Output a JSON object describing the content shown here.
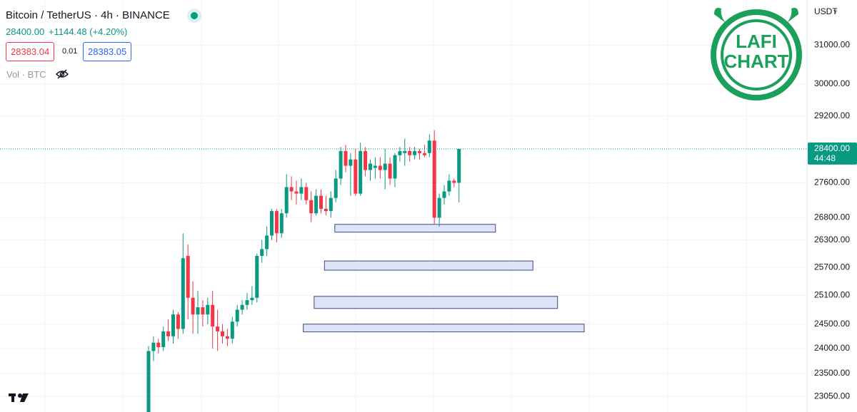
{
  "header": {
    "symbol": "Bitcoin / TetherUS · 4h · BINANCE",
    "price": "28400.00",
    "change": "+1144.48 (+4.20%)",
    "sell": "28383.04",
    "spread": "0.01",
    "buy": "28383.05",
    "volume": "Vol · BTC"
  },
  "currency": "USDT",
  "logo": {
    "line1": "LAFI",
    "line2": "CHART"
  },
  "chart_data": {
    "type": "candlestick",
    "log_scale": true,
    "grid": true,
    "up_color": "#089981",
    "down_color": "#f23645",
    "ylim": [
      22750,
      32200
    ],
    "yticks": [
      {
        "value": 31000,
        "label": "31000.00"
      },
      {
        "value": 30000,
        "label": "30000.00"
      },
      {
        "value": 29200,
        "label": "29200.00"
      },
      {
        "value": 27600,
        "label": "27600.00"
      },
      {
        "value": 26800,
        "label": "26800.00"
      },
      {
        "value": 26300,
        "label": "26300.00"
      },
      {
        "value": 25700,
        "label": "25700.00"
      },
      {
        "value": 25100,
        "label": "25100.00"
      },
      {
        "value": 24500,
        "label": "24500.00"
      },
      {
        "value": 24000,
        "label": "24000.00"
      },
      {
        "value": 23500,
        "label": "23500.00"
      },
      {
        "value": 23050,
        "label": "23050.00"
      }
    ],
    "price_line": {
      "value": 28400,
      "label": "28400.00",
      "countdown": "44:48"
    },
    "open": [
      22600,
      23950,
      24120,
      24030,
      24350,
      24250,
      24700,
      24400,
      25950,
      25050,
      24700,
      24850,
      24700,
      24900,
      24450,
      24350,
      24250,
      24200,
      24550,
      24800,
      24900,
      25000,
      25050,
      25950,
      26100,
      26400,
      26950,
      26450,
      26900,
      27500,
      27400,
      27350,
      27500,
      27200,
      26900,
      27300,
      27000,
      26950,
      27250,
      27700,
      28350,
      28000,
      28150,
      27350,
      28350,
      27900,
      27950,
      28000,
      27900,
      28050,
      27700,
      28250,
      28300,
      28350,
      28250,
      28350,
      28300,
      28300,
      28600,
      26800,
      27250,
      27400,
      27650,
      27600
    ],
    "high": [
      24050,
      24250,
      24200,
      24450,
      24600,
      24800,
      24750,
      26450,
      26200,
      25400,
      25200,
      25000,
      25050,
      25200,
      24800,
      24500,
      24400,
      24650,
      24900,
      25000,
      25150,
      25300,
      26000,
      26300,
      26600,
      27000,
      27000,
      27000,
      27800,
      27750,
      27650,
      27700,
      27600,
      27400,
      27450,
      27450,
      27300,
      27400,
      27900,
      28450,
      28500,
      28300,
      28400,
      28550,
      28450,
      28150,
      28200,
      28200,
      28400,
      28200,
      28300,
      28450,
      28650,
      28450,
      28450,
      28400,
      28500,
      28750,
      28850,
      27350,
      27550,
      27800,
      27700,
      28400
    ],
    "low": [
      22500,
      23750,
      23900,
      23950,
      24150,
      24100,
      24200,
      24300,
      24600,
      24300,
      24300,
      24450,
      24500,
      24000,
      23950,
      24100,
      24050,
      24100,
      24450,
      24700,
      24800,
      24900,
      24950,
      25800,
      25950,
      26300,
      26250,
      26350,
      26800,
      27200,
      27100,
      27200,
      27100,
      26700,
      26850,
      26900,
      26850,
      26800,
      27150,
      27550,
      27850,
      27300,
      27300,
      27300,
      27750,
      27650,
      27700,
      27700,
      27450,
      27550,
      27500,
      28100,
      28000,
      28100,
      28150,
      28150,
      28200,
      28200,
      26650,
      26600,
      27100,
      27300,
      27500,
      27150
    ],
    "close": [
      23950,
      24120,
      24030,
      24350,
      24250,
      24700,
      24400,
      25900,
      25050,
      24700,
      24850,
      24700,
      24900,
      24450,
      24350,
      24250,
      24200,
      24550,
      24800,
      24900,
      25000,
      25050,
      25950,
      26100,
      26400,
      26950,
      26450,
      26900,
      27500,
      27400,
      27350,
      27500,
      27200,
      26900,
      27300,
      27000,
      26950,
      27250,
      27700,
      28350,
      28000,
      28150,
      27350,
      28350,
      27900,
      28050,
      28000,
      27900,
      28050,
      27700,
      28250,
      28350,
      28350,
      28250,
      28350,
      28300,
      28250,
      28600,
      26800,
      27250,
      27400,
      27650,
      27600,
      28400
    ],
    "zone_color": "#dde4f7",
    "zone_border": "#3b4a7c",
    "zones": [
      {
        "low": 26475,
        "high": 26650,
        "start": 37.8,
        "end": 70.4
      },
      {
        "low": 25640,
        "high": 25840,
        "start": 35.7,
        "end": 78
      },
      {
        "low": 24825,
        "high": 25080,
        "start": 33.6,
        "end": 83
      },
      {
        "low": 24340,
        "high": 24500,
        "start": 31.4,
        "end": 88.4
      }
    ]
  }
}
